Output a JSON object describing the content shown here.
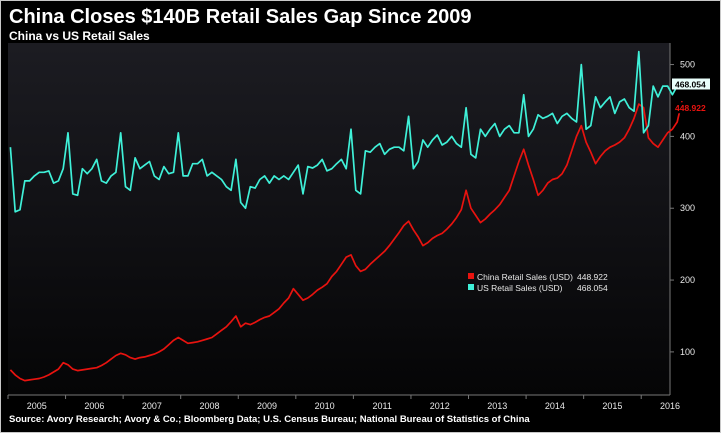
{
  "header": {
    "title": "China Closes $140B Retail Sales Gap Since 2009",
    "subtitle": "China vs US Retail Sales"
  },
  "footer": {
    "source": "Source: Avory Research; Avory & Co.; Bloomberg Data; U.S. Census Bureau; National Bureau of Statistics of China"
  },
  "toolbar": {
    "chart_type_icon": "line-chart-icon",
    "dropdown_icon": "chevron-down-icon"
  },
  "chart_data": {
    "type": "line",
    "title": "China Closes $140B Retail Sales Gap Since 2009",
    "subtitle": "China vs US Retail Sales",
    "xlabel": "",
    "ylabel": "",
    "x_range": [
      "2005-01",
      "2016-07"
    ],
    "ylim": [
      40,
      530
    ],
    "y_ticks": [
      100,
      200,
      300,
      400,
      500
    ],
    "x_tick_labels": [
      "2005",
      "2006",
      "2007",
      "2008",
      "2009",
      "2010",
      "2011",
      "2012",
      "2013",
      "2014",
      "2015",
      "2016"
    ],
    "grid": false,
    "legend_position": "lower-right",
    "background": "#0a0a0c",
    "x_step": "monthly",
    "series": [
      {
        "name": "China Retail Sales (USD)",
        "legend_value": "448.922",
        "last_value_label": "448.922",
        "color": "#e8130f",
        "values": [
          75,
          68,
          63,
          60,
          61,
          62,
          63,
          65,
          68,
          72,
          76,
          85,
          82,
          76,
          74,
          75,
          76,
          77,
          78,
          81,
          85,
          90,
          95,
          98,
          96,
          92,
          90,
          92,
          93,
          95,
          97,
          100,
          104,
          110,
          116,
          120,
          116,
          112,
          113,
          114,
          116,
          118,
          120,
          125,
          130,
          135,
          142,
          150,
          135,
          140,
          138,
          141,
          145,
          148,
          150,
          155,
          160,
          168,
          175,
          188,
          180,
          172,
          175,
          180,
          186,
          190,
          195,
          205,
          212,
          222,
          232,
          235,
          220,
          212,
          215,
          222,
          228,
          234,
          240,
          248,
          257,
          266,
          276,
          282,
          270,
          260,
          248,
          252,
          258,
          262,
          265,
          271,
          278,
          287,
          298,
          325,
          300,
          290,
          280,
          285,
          292,
          298,
          305,
          315,
          325,
          345,
          365,
          382,
          360,
          340,
          318,
          325,
          335,
          340,
          342,
          348,
          360,
          380,
          400,
          415,
          392,
          378,
          362,
          372,
          380,
          385,
          388,
          392,
          398,
          410,
          425,
          445,
          440,
          398,
          390,
          385,
          395,
          405,
          410,
          420,
          448.922
        ]
      },
      {
        "name": "US Retail Sales (USD)",
        "legend_value": "468.054",
        "last_value_label": "468.054",
        "color": "#3ff0d8",
        "values": [
          385,
          295,
          298,
          338,
          338,
          345,
          350,
          350,
          352,
          335,
          338,
          355,
          405,
          320,
          318,
          355,
          348,
          355,
          368,
          338,
          335,
          345,
          350,
          405,
          330,
          325,
          370,
          355,
          360,
          365,
          345,
          340,
          358,
          348,
          350,
          405,
          345,
          345,
          362,
          362,
          368,
          345,
          350,
          345,
          340,
          330,
          325,
          368,
          308,
          300,
          330,
          328,
          340,
          345,
          335,
          345,
          340,
          345,
          340,
          350,
          360,
          320,
          358,
          356,
          360,
          368,
          352,
          355,
          362,
          368,
          355,
          410,
          325,
          320,
          380,
          378,
          385,
          390,
          375,
          382,
          385,
          385,
          380,
          428,
          355,
          365,
          395,
          385,
          395,
          402,
          388,
          392,
          400,
          390,
          385,
          440,
          375,
          370,
          410,
          400,
          410,
          418,
          400,
          410,
          415,
          405,
          405,
          458,
          400,
          410,
          430,
          425,
          428,
          432,
          418,
          428,
          432,
          425,
          420,
          500,
          410,
          415,
          455,
          440,
          448,
          455,
          432,
          448,
          452,
          440,
          435,
          518,
          405,
          415,
          470,
          455,
          470,
          470,
          458,
          470,
          468.054
        ]
      }
    ]
  }
}
